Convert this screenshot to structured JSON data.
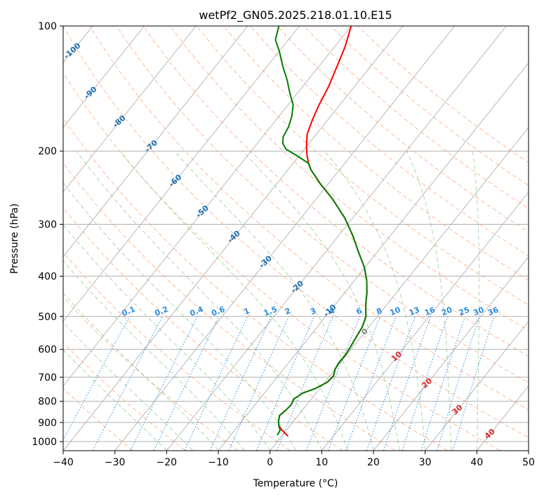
{
  "chart_data": {
    "type": "skew-t",
    "title": "wetPf2_GN05.2025.218.01.10.E15",
    "xlabel": "Temperature (°C)",
    "ylabel": "Pressure (hPa)",
    "xlim": [
      -40,
      50
    ],
    "ylim": [
      1050,
      100
    ],
    "y_log": true,
    "grid": true,
    "x_ticks": [
      "−40",
      "−30",
      "−20",
      "−10",
      "0",
      "10",
      "20",
      "30",
      "40",
      "50"
    ],
    "y_ticks": [
      "100",
      "200",
      "300",
      "400",
      "500",
      "600",
      "700",
      "800",
      "900",
      "1000"
    ],
    "temperature_profile": {
      "color": "#ff0000",
      "points": [
        {
          "p": 970,
          "t": 1.2
        },
        {
          "p": 940,
          "t": -0.8
        },
        {
          "p": 915,
          "t": -2.2
        },
        {
          "p": 890,
          "t": -3.0
        },
        {
          "p": 865,
          "t": -3.6
        },
        {
          "p": 840,
          "t": -3.2
        },
        {
          "p": 815,
          "t": -3.0
        },
        {
          "p": 790,
          "t": -3.4
        },
        {
          "p": 765,
          "t": -2.6
        },
        {
          "p": 745,
          "t": -0.8
        },
        {
          "p": 720,
          "t": 0.5
        },
        {
          "p": 695,
          "t": 0.7
        },
        {
          "p": 670,
          "t": 0.0
        },
        {
          "p": 645,
          "t": -0.3
        },
        {
          "p": 620,
          "t": -0.2
        },
        {
          "p": 590,
          "t": -0.5
        },
        {
          "p": 560,
          "t": -0.9
        },
        {
          "p": 530,
          "t": -1.3
        },
        {
          "p": 500,
          "t": -2.2
        },
        {
          "p": 470,
          "t": -4.0
        },
        {
          "p": 440,
          "t": -5.6
        },
        {
          "p": 410,
          "t": -7.6
        },
        {
          "p": 380,
          "t": -10.2
        },
        {
          "p": 350,
          "t": -13.6
        },
        {
          "p": 320,
          "t": -17.2
        },
        {
          "p": 290,
          "t": -21.5
        },
        {
          "p": 260,
          "t": -27.0
        },
        {
          "p": 240,
          "t": -31.5
        },
        {
          "p": 222,
          "t": -35.5
        },
        {
          "p": 214,
          "t": -37.0
        },
        {
          "p": 205,
          "t": -38.5
        },
        {
          "p": 195,
          "t": -40.0
        },
        {
          "p": 182,
          "t": -41.8
        },
        {
          "p": 168,
          "t": -43.0
        },
        {
          "p": 155,
          "t": -44.0
        },
        {
          "p": 140,
          "t": -45.0
        },
        {
          "p": 125,
          "t": -46.5
        },
        {
          "p": 112,
          "t": -48.0
        },
        {
          "p": 100,
          "t": -50.0
        }
      ]
    },
    "dewpoint_profile": {
      "color": "#008000",
      "points": [
        {
          "p": 965,
          "t": -1.0
        },
        {
          "p": 940,
          "t": -1.2
        },
        {
          "p": 915,
          "t": -2.2
        },
        {
          "p": 890,
          "t": -3.0
        },
        {
          "p": 865,
          "t": -3.6
        },
        {
          "p": 840,
          "t": -3.2
        },
        {
          "p": 815,
          "t": -3.0
        },
        {
          "p": 790,
          "t": -3.4
        },
        {
          "p": 765,
          "t": -2.6
        },
        {
          "p": 745,
          "t": -0.8
        },
        {
          "p": 720,
          "t": 0.5
        },
        {
          "p": 695,
          "t": 0.7
        },
        {
          "p": 670,
          "t": 0.0
        },
        {
          "p": 645,
          "t": -0.3
        },
        {
          "p": 620,
          "t": -0.2
        },
        {
          "p": 590,
          "t": -0.5
        },
        {
          "p": 560,
          "t": -0.9
        },
        {
          "p": 530,
          "t": -1.3
        },
        {
          "p": 500,
          "t": -2.2
        },
        {
          "p": 470,
          "t": -4.0
        },
        {
          "p": 440,
          "t": -5.6
        },
        {
          "p": 410,
          "t": -7.6
        },
        {
          "p": 380,
          "t": -10.2
        },
        {
          "p": 350,
          "t": -13.6
        },
        {
          "p": 320,
          "t": -17.2
        },
        {
          "p": 290,
          "t": -21.5
        },
        {
          "p": 260,
          "t": -27.0
        },
        {
          "p": 240,
          "t": -31.5
        },
        {
          "p": 222,
          "t": -35.5
        },
        {
          "p": 214,
          "t": -37.0
        },
        {
          "p": 205,
          "t": -40.5
        },
        {
          "p": 198,
          "t": -43.5
        },
        {
          "p": 192,
          "t": -45.0
        },
        {
          "p": 185,
          "t": -46.0
        },
        {
          "p": 175,
          "t": -46.5
        },
        {
          "p": 165,
          "t": -47.5
        },
        {
          "p": 155,
          "t": -49.0
        },
        {
          "p": 145,
          "t": -51.5
        },
        {
          "p": 135,
          "t": -54.0
        },
        {
          "p": 125,
          "t": -57.0
        },
        {
          "p": 115,
          "t": -60.0
        },
        {
          "p": 108,
          "t": -62.5
        },
        {
          "p": 100,
          "t": -64.0
        }
      ]
    },
    "isotherms": [
      -100,
      -90,
      -80,
      -70,
      -60,
      -50,
      -40,
      -30,
      -20,
      -10,
      0,
      10,
      20,
      30,
      40,
      50
    ],
    "dry_adiabats_theta_c": [
      -30,
      -20,
      -10,
      0,
      10,
      20,
      30,
      40,
      50,
      60,
      70,
      80,
      90,
      100,
      110,
      120,
      130,
      140,
      150,
      160
    ],
    "moist_adiabats_c": [
      -20,
      -15,
      -10,
      -5,
      0,
      5,
      10,
      15,
      20,
      25,
      30,
      35,
      40
    ],
    "mixing_ratio_lines_gkg": [
      "0.1",
      "0.2",
      "0.4",
      "0.6",
      "1",
      "1.5",
      "2",
      "3",
      "4",
      "6",
      "8",
      "10",
      "13",
      "16",
      "20",
      "25",
      "30",
      "36"
    ],
    "isotherm_labels": [
      {
        "value": -100,
        "p": 115
      },
      {
        "value": -90,
        "p": 145
      },
      {
        "value": -80,
        "p": 170
      },
      {
        "value": -70,
        "p": 195
      },
      {
        "value": -60,
        "p": 236
      },
      {
        "value": -50,
        "p": 280
      },
      {
        "value": -40,
        "p": 322
      },
      {
        "value": -30,
        "p": 370
      },
      {
        "value": -20,
        "p": 425
      },
      {
        "value": -10,
        "p": 485
      },
      {
        "value": 0,
        "p": 545
      },
      {
        "value": 10,
        "p": 625
      },
      {
        "value": 20,
        "p": 725
      },
      {
        "value": 30,
        "p": 840
      },
      {
        "value": 40,
        "p": 960
      }
    ],
    "colors": {
      "isotherm_label_cold": "#1f6fae",
      "isotherm_label_zero": "#808080",
      "isotherm_label_warm": "#d62728",
      "mixing_ratio": "#2b8be0",
      "dry_adiabat": "#ff9966",
      "moist_adiabat": "#7fbf7f",
      "grid": "#b0b0b0"
    }
  }
}
